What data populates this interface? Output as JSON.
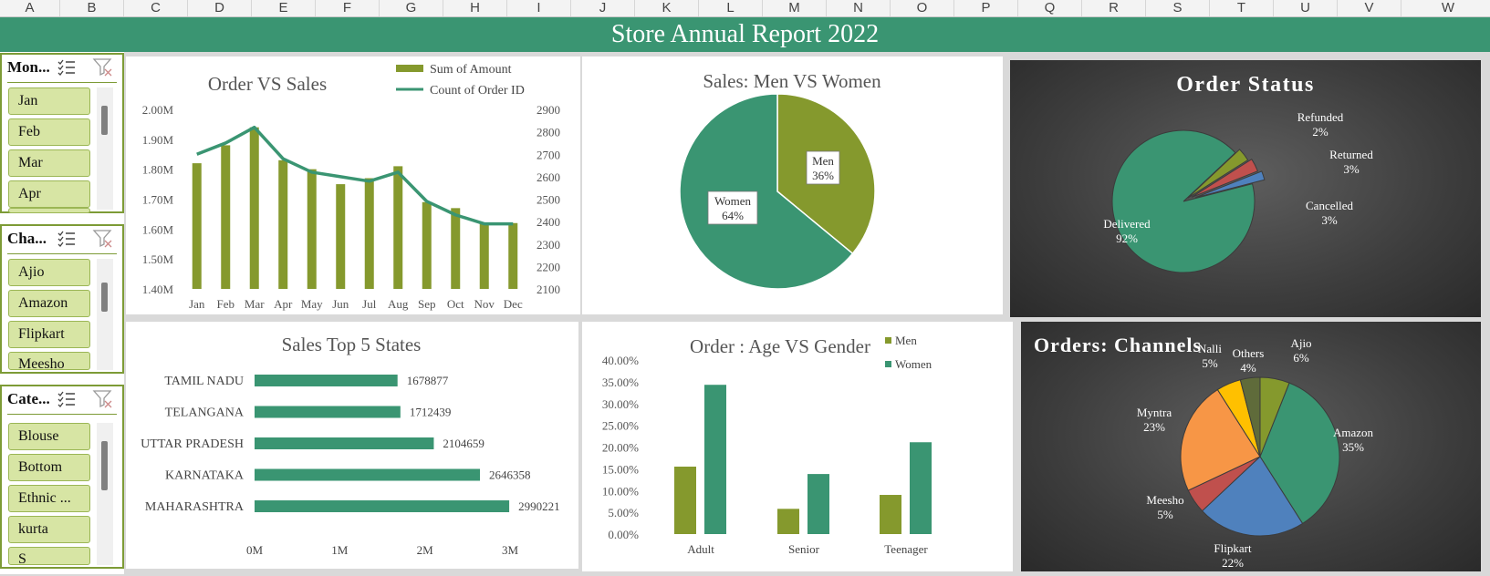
{
  "spreadsheet": {
    "column_headers": [
      "A",
      "B",
      "C",
      "D",
      "E",
      "F",
      "G",
      "H",
      "I",
      "J",
      "K",
      "L",
      "M",
      "N",
      "O",
      "P",
      "Q",
      "R",
      "S",
      "T",
      "U",
      "V",
      "W"
    ]
  },
  "report": {
    "title": "Store Annual Report 2022"
  },
  "slicers": [
    {
      "title": "Mon...",
      "items": [
        "Jan",
        "Feb",
        "Mar",
        "Apr"
      ]
    },
    {
      "title": "Cha...",
      "items": [
        "Ajio",
        "Amazon",
        "Flipkart",
        "Meesho"
      ]
    },
    {
      "title": "Cate...",
      "items": [
        "Blouse",
        "Bottom",
        "Ethnic ...",
        "kurta",
        "S"
      ]
    }
  ],
  "icons": [
    "multi-select-icon",
    "clear-filter-icon"
  ],
  "colors": {
    "green": "#3a9572",
    "olive": "#85992d",
    "banner": "#3a9572"
  },
  "chart_data": [
    {
      "type": "bar",
      "title": "Order VS Sales",
      "categories": [
        "Jan",
        "Feb",
        "Mar",
        "Apr",
        "May",
        "Jun",
        "Jul",
        "Aug",
        "Sep",
        "Oct",
        "Nov",
        "Dec"
      ],
      "series": [
        {
          "name": "Sum of Amount",
          "type": "bar",
          "axis": "left",
          "color": "#85992d",
          "values": [
            1.82,
            1.88,
            1.94,
            1.83,
            1.8,
            1.75,
            1.77,
            1.81,
            1.69,
            1.67,
            1.62,
            1.62
          ]
        },
        {
          "name": "Count of Order ID",
          "type": "line",
          "axis": "right",
          "color": "#3a9572",
          "values": [
            2700,
            2750,
            2820,
            2680,
            2620,
            2600,
            2580,
            2620,
            2490,
            2430,
            2390,
            2390
          ]
        }
      ],
      "y_left": {
        "ticks": [
          "2.00M",
          "1.90M",
          "1.80M",
          "1.70M",
          "1.60M",
          "1.50M",
          "1.40M"
        ],
        "range": [
          1.4,
          2.0
        ]
      },
      "y_right": {
        "ticks": [
          "2900",
          "2800",
          "2700",
          "2600",
          "2500",
          "2400",
          "2300",
          "2200",
          "2100"
        ],
        "range": [
          2100,
          2900
        ]
      },
      "legend": "top-right",
      "grid": false
    },
    {
      "type": "pie",
      "title": "Sales: Men VS Women",
      "slices": [
        {
          "label": "Men",
          "pct": "36%",
          "value": 36,
          "color": "#85992d"
        },
        {
          "label": "Women",
          "pct": "64%",
          "value": 64,
          "color": "#3a9572"
        }
      ]
    },
    {
      "type": "pie",
      "title": "Order Status",
      "slices": [
        {
          "label": "Delivered",
          "pct": "92%",
          "value": 92,
          "color": "#3a9572"
        },
        {
          "label": "Cancelled",
          "pct": "3%",
          "value": 3,
          "color": "#85992d"
        },
        {
          "label": "Returned",
          "pct": "3%",
          "value": 3,
          "color": "#c0504d"
        },
        {
          "label": "Refunded",
          "pct": "2%",
          "value": 2,
          "color": "#4f81bd"
        }
      ]
    },
    {
      "type": "bar",
      "orientation": "horizontal",
      "title": "Sales Top 5 States",
      "categories": [
        "TAMIL NADU",
        "TELANGANA",
        "UTTAR PRADESH",
        "KARNATAKA",
        "MAHARASHTRA"
      ],
      "values": [
        1678877,
        1712439,
        2104659,
        2646358,
        2990221
      ],
      "value_labels": [
        "1678877",
        "1712439",
        "2104659",
        "2646358",
        "2990221"
      ],
      "x_ticks": [
        "0M",
        "1M",
        "2M",
        "3M"
      ],
      "xlim": [
        0,
        3000000
      ],
      "color": "#3a9572"
    },
    {
      "type": "bar",
      "title": "Order : Age VS Gender",
      "categories": [
        "Adult",
        "Senior",
        "Teenager"
      ],
      "series": [
        {
          "name": "Men",
          "color": "#85992d",
          "values": [
            15.5,
            5.8,
            9.0
          ]
        },
        {
          "name": "Women",
          "color": "#3a9572",
          "values": [
            34.3,
            13.8,
            21.1
          ]
        }
      ],
      "y_ticks": [
        "40.00%",
        "35.00%",
        "30.00%",
        "25.00%",
        "20.00%",
        "15.00%",
        "10.00%",
        "5.00%",
        "0.00%"
      ],
      "ylim": [
        0,
        40
      ],
      "legend": "top-right"
    },
    {
      "type": "pie",
      "title": "Orders: Channels",
      "slices": [
        {
          "label": "Amazon",
          "pct": "35%",
          "value": 35,
          "color": "#3a9572"
        },
        {
          "label": "Flipkart",
          "pct": "22%",
          "value": 22,
          "color": "#4f81bd"
        },
        {
          "label": "Meesho",
          "pct": "5%",
          "value": 5,
          "color": "#c0504d"
        },
        {
          "label": "Myntra",
          "pct": "23%",
          "value": 23,
          "color": "#f79646"
        },
        {
          "label": "Nalli",
          "pct": "5%",
          "value": 5,
          "color": "#ffc000"
        },
        {
          "label": "Others",
          "pct": "4%",
          "value": 4,
          "color": "#5f6b3a"
        },
        {
          "label": "Ajio",
          "pct": "6%",
          "value": 6,
          "color": "#85992d"
        }
      ]
    }
  ]
}
